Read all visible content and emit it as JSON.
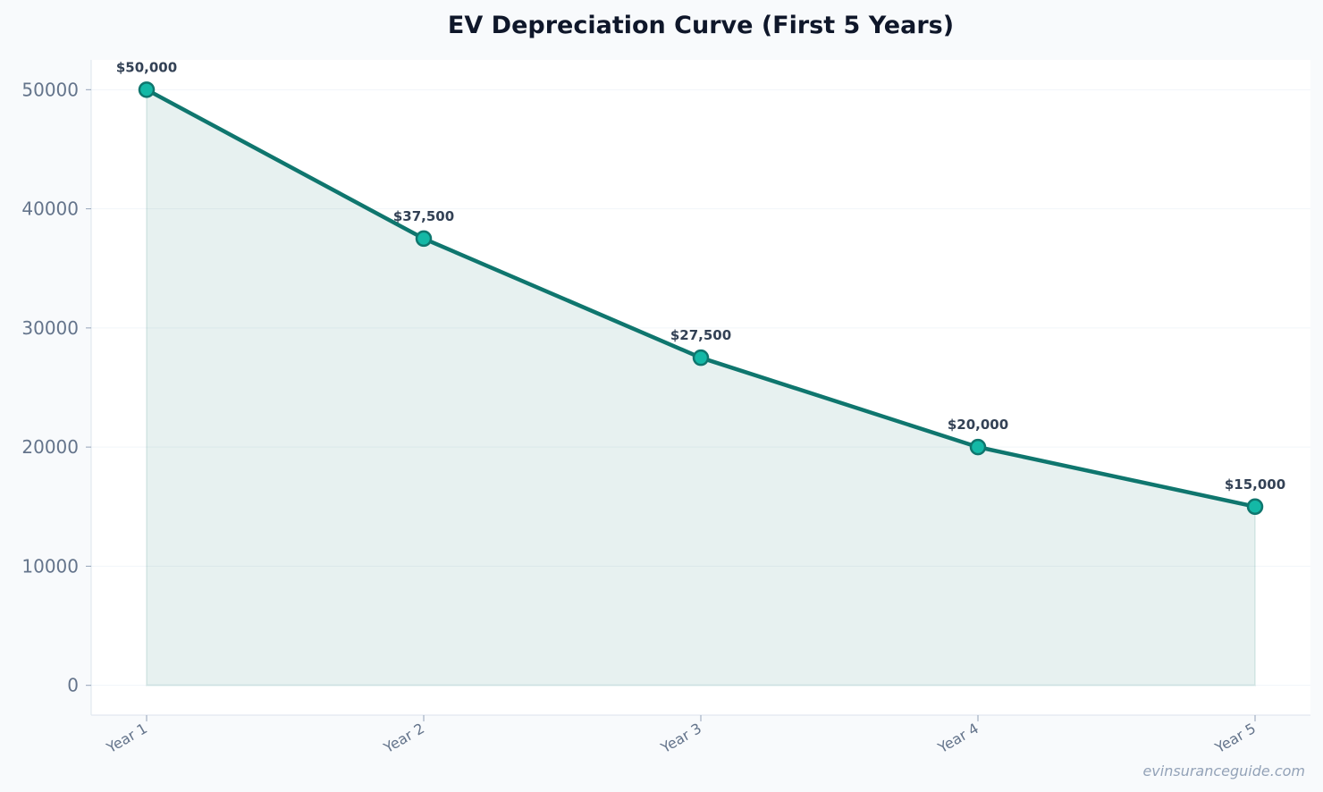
{
  "chart_data": {
    "type": "line",
    "title": "EV Depreciation Curve (First 5 Years)",
    "xlabel": "",
    "ylabel": "",
    "categories": [
      "Year 1",
      "Year 2",
      "Year 3",
      "Year 4",
      "Year 5"
    ],
    "series": [
      {
        "values": [
          50000,
          37500,
          27500,
          20000,
          15000
        ],
        "labels": [
          "$50,000",
          "$37,500",
          "$27,500",
          "$20,000",
          "$15,000"
        ],
        "line_color": "#0f766e",
        "marker_color": "#14b8a6",
        "fill_color": "#0f766e"
      }
    ],
    "yticks": [
      0,
      10000,
      20000,
      30000,
      40000,
      50000
    ],
    "ylim": [
      -2500,
      52500
    ],
    "grid": true,
    "area_fill": true
  },
  "watermark": "evinsuranceguide.com"
}
